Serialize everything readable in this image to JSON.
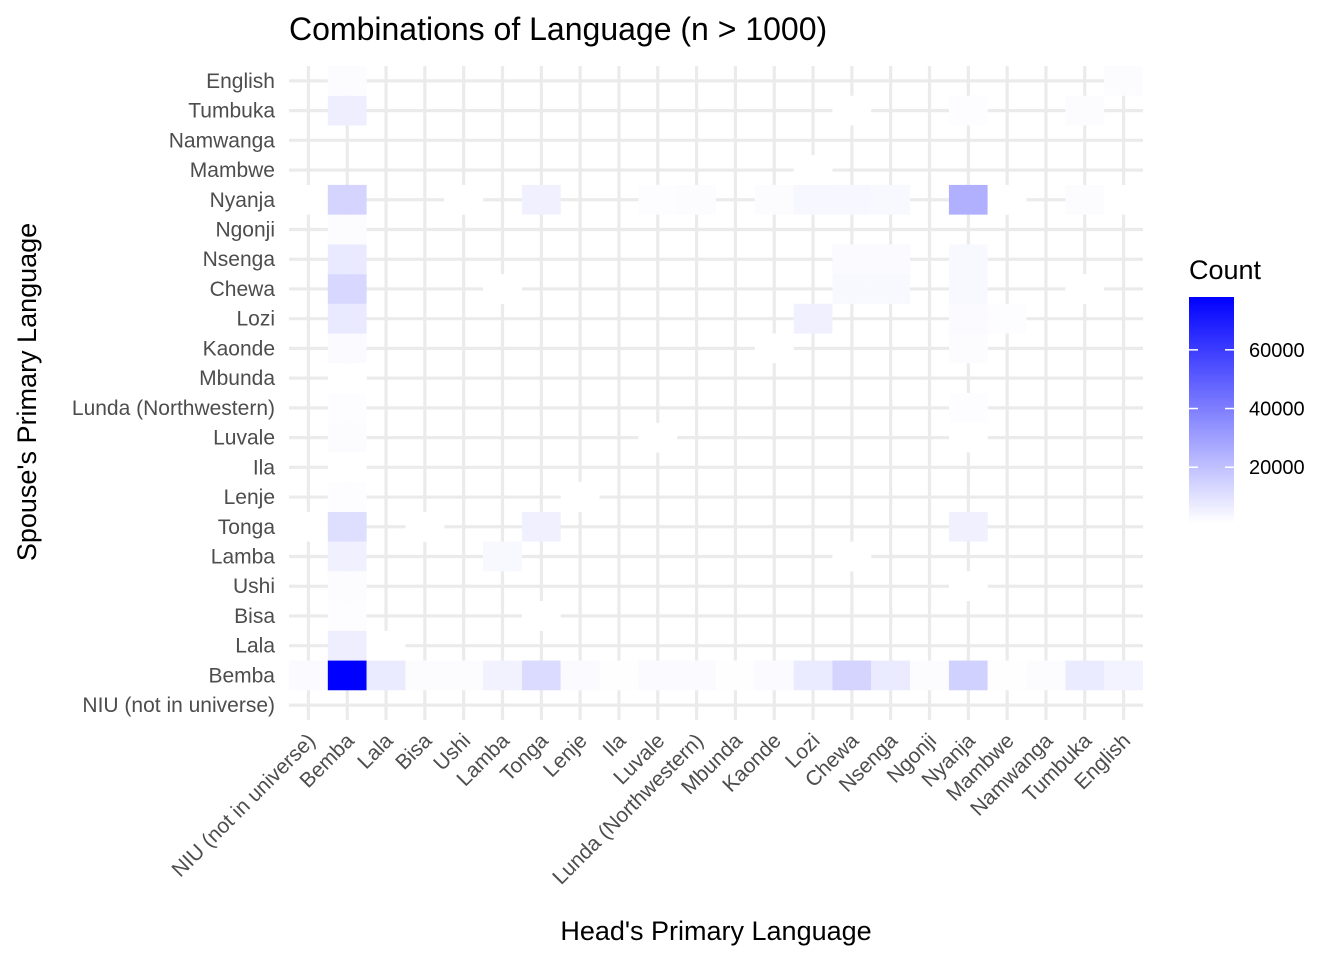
{
  "chart_data": {
    "type": "heatmap",
    "title": "Combinations of Language (n > 1000)",
    "xlabel": "Head's Primary Language",
    "ylabel": "Spouse's Primary Language",
    "x_categories": [
      "NIU (not in universe)",
      "Bemba",
      "Lala",
      "Bisa",
      "Ushi",
      "Lamba",
      "Tonga",
      "Lenje",
      "Ila",
      "Luvale",
      "Lunda (Northwestern)",
      "Mbunda",
      "Kaonde",
      "Lozi",
      "Chewa",
      "Nsenga",
      "Ngonji",
      "Nyanja",
      "Mambwe",
      "Namwanga",
      "Tumbuka",
      "English"
    ],
    "y_categories": [
      "NIU (not in universe)",
      "Bemba",
      "Lala",
      "Bisa",
      "Ushi",
      "Lamba",
      "Tonga",
      "Lenje",
      "Ila",
      "Luvale",
      "Lunda (Northwestern)",
      "Mbunda",
      "Kaonde",
      "Lozi",
      "Chewa",
      "Nsenga",
      "Ngonji",
      "Nyanja",
      "Mambwe",
      "Namwanga",
      "Tumbuka",
      "English"
    ],
    "cells": [
      {
        "x": "NIU (not in universe)",
        "y": "Bemba",
        "value": 2200
      },
      {
        "x": "Bemba",
        "y": "Bemba",
        "value": 78000
      },
      {
        "x": "Lala",
        "y": "Bemba",
        "value": 7000
      },
      {
        "x": "Bisa",
        "y": "Bemba",
        "value": 2000
      },
      {
        "x": "Ushi",
        "y": "Bemba",
        "value": 2000
      },
      {
        "x": "Lamba",
        "y": "Bemba",
        "value": 5000
      },
      {
        "x": "Tonga",
        "y": "Bemba",
        "value": 12000
      },
      {
        "x": "Lenje",
        "y": "Bemba",
        "value": 2200
      },
      {
        "x": "Ila",
        "y": "Bemba",
        "value": 1200
      },
      {
        "x": "Luvale",
        "y": "Bemba",
        "value": 2500
      },
      {
        "x": "Lunda (Northwestern)",
        "y": "Bemba",
        "value": 2500
      },
      {
        "x": "Mbunda",
        "y": "Bemba",
        "value": 1200
      },
      {
        "x": "Kaonde",
        "y": "Bemba",
        "value": 2500
      },
      {
        "x": "Lozi",
        "y": "Bemba",
        "value": 7000
      },
      {
        "x": "Chewa",
        "y": "Bemba",
        "value": 14000
      },
      {
        "x": "Nsenga",
        "y": "Bemba",
        "value": 7000
      },
      {
        "x": "Ngonji",
        "y": "Bemba",
        "value": 2000
      },
      {
        "x": "Nyanja",
        "y": "Bemba",
        "value": 15000
      },
      {
        "x": "Mambwe",
        "y": "Bemba",
        "value": 1200
      },
      {
        "x": "Namwanga",
        "y": "Bemba",
        "value": 2000
      },
      {
        "x": "Tumbuka",
        "y": "Bemba",
        "value": 7000
      },
      {
        "x": "English",
        "y": "Bemba",
        "value": 4500
      },
      {
        "x": "Bemba",
        "y": "Lala",
        "value": 6000
      },
      {
        "x": "Lala",
        "y": "Lala",
        "value": 1100
      },
      {
        "x": "Bemba",
        "y": "Bisa",
        "value": 1500
      },
      {
        "x": "Tonga",
        "y": "Bisa",
        "value": 1100
      },
      {
        "x": "Bemba",
        "y": "Ushi",
        "value": 2000
      },
      {
        "x": "Nyanja",
        "y": "Ushi",
        "value": 1100
      },
      {
        "x": "Bemba",
        "y": "Lamba",
        "value": 5500
      },
      {
        "x": "Lamba",
        "y": "Lamba",
        "value": 3000
      },
      {
        "x": "Chewa",
        "y": "Lamba",
        "value": 1100
      },
      {
        "x": "NIU (not in universe)",
        "y": "Tonga",
        "value": 1100
      },
      {
        "x": "Bemba",
        "y": "Tonga",
        "value": 11000
      },
      {
        "x": "Bisa",
        "y": "Tonga",
        "value": 1100
      },
      {
        "x": "Tonga",
        "y": "Tonga",
        "value": 5500
      },
      {
        "x": "Nyanja",
        "y": "Tonga",
        "value": 5500
      },
      {
        "x": "Bemba",
        "y": "Lenje",
        "value": 1500
      },
      {
        "x": "Lenje",
        "y": "Lenje",
        "value": 1100
      },
      {
        "x": "Bemba",
        "y": "Ila",
        "value": 1100
      },
      {
        "x": "Bemba",
        "y": "Luvale",
        "value": 2000
      },
      {
        "x": "Luvale",
        "y": "Luvale",
        "value": 1100
      },
      {
        "x": "Nyanja",
        "y": "Luvale",
        "value": 1100
      },
      {
        "x": "Bemba",
        "y": "Lunda (Northwestern)",
        "value": 1500
      },
      {
        "x": "Nyanja",
        "y": "Lunda (Northwestern)",
        "value": 1500
      },
      {
        "x": "Bemba",
        "y": "Mbunda",
        "value": 1100
      },
      {
        "x": "Bemba",
        "y": "Kaonde",
        "value": 2500
      },
      {
        "x": "Kaonde",
        "y": "Kaonde",
        "value": 1100
      },
      {
        "x": "Nyanja",
        "y": "Kaonde",
        "value": 2000
      },
      {
        "x": "Bemba",
        "y": "Lozi",
        "value": 7500
      },
      {
        "x": "Lozi",
        "y": "Lozi",
        "value": 5500
      },
      {
        "x": "Nyanja",
        "y": "Lozi",
        "value": 2500
      },
      {
        "x": "Mambwe",
        "y": "Lozi",
        "value": 1500
      },
      {
        "x": "Bemba",
        "y": "Chewa",
        "value": 13000
      },
      {
        "x": "Lamba",
        "y": "Chewa",
        "value": 1100
      },
      {
        "x": "Chewa",
        "y": "Chewa",
        "value": 3000
      },
      {
        "x": "Nsenga",
        "y": "Chewa",
        "value": 3000
      },
      {
        "x": "Nyanja",
        "y": "Chewa",
        "value": 3000
      },
      {
        "x": "Tumbuka",
        "y": "Chewa",
        "value": 1100
      },
      {
        "x": "Bemba",
        "y": "Nsenga",
        "value": 7500
      },
      {
        "x": "Chewa",
        "y": "Nsenga",
        "value": 2500
      },
      {
        "x": "Nsenga",
        "y": "Nsenga",
        "value": 2500
      },
      {
        "x": "Nyanja",
        "y": "Nsenga",
        "value": 3000
      },
      {
        "x": "Bemba",
        "y": "Ngonji",
        "value": 2000
      },
      {
        "x": "NIU (not in universe)",
        "y": "Nyanja",
        "value": 1100
      },
      {
        "x": "Bemba",
        "y": "Nyanja",
        "value": 14000
      },
      {
        "x": "Ushi",
        "y": "Nyanja",
        "value": 1100
      },
      {
        "x": "Tonga",
        "y": "Nyanja",
        "value": 5500
      },
      {
        "x": "Luvale",
        "y": "Nyanja",
        "value": 1500
      },
      {
        "x": "Lunda (Northwestern)",
        "y": "Nyanja",
        "value": 2000
      },
      {
        "x": "Kaonde",
        "y": "Nyanja",
        "value": 2000
      },
      {
        "x": "Lozi",
        "y": "Nyanja",
        "value": 3500
      },
      {
        "x": "Chewa",
        "y": "Nyanja",
        "value": 3500
      },
      {
        "x": "Nsenga",
        "y": "Nyanja",
        "value": 3000
      },
      {
        "x": "Nyanja",
        "y": "Nyanja",
        "value": 25000
      },
      {
        "x": "Mambwe",
        "y": "Nyanja",
        "value": 1100
      },
      {
        "x": "Tumbuka",
        "y": "Nyanja",
        "value": 2000
      },
      {
        "x": "English",
        "y": "Nyanja",
        "value": 1100
      },
      {
        "x": "Lozi",
        "y": "Mambwe",
        "value": 1100
      },
      {
        "x": "Bemba",
        "y": "Tumbuka",
        "value": 6000
      },
      {
        "x": "Chewa",
        "y": "Tumbuka",
        "value": 1100
      },
      {
        "x": "Nyanja",
        "y": "Tumbuka",
        "value": 1500
      },
      {
        "x": "Tumbuka",
        "y": "Tumbuka",
        "value": 2000
      },
      {
        "x": "Bemba",
        "y": "English",
        "value": 2000
      },
      {
        "x": "English",
        "y": "English",
        "value": 2000
      }
    ],
    "colorbar": {
      "title": "Count",
      "low_color": "#ffffff",
      "high_color": "#0000ff",
      "min": 1000,
      "max": 78000,
      "ticks": [
        20000,
        40000,
        60000
      ],
      "tick_labels": [
        "20000",
        "40000",
        "60000"
      ]
    },
    "grid": true,
    "legend_position": "right"
  }
}
